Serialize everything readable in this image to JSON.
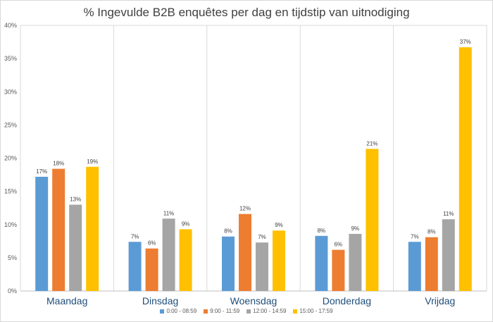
{
  "chart_data": {
    "type": "bar",
    "title": "% Ingevulde B2B enquêtes per dag en tijdstip van uitnodiging",
    "categories": [
      "Maandag",
      "Dinsdag",
      "Woensdag",
      "Donderdag",
      "Vrijdag"
    ],
    "ylim": [
      0,
      40
    ],
    "yticks": [
      "0%",
      "5%",
      "10%",
      "15%",
      "20%",
      "25%",
      "30%",
      "35%",
      "40%"
    ],
    "grid": "vertical lines between categories",
    "legend_position": "bottom",
    "series": [
      {
        "name": "0:00 - 08:59",
        "color": "#5b9bd5",
        "values": [
          17.2,
          7.4,
          8.2,
          8.3,
          7.4
        ],
        "labels": [
          "17%",
          "7%",
          "8%",
          "8%",
          "7%"
        ]
      },
      {
        "name": "9:00 - 11:59",
        "color": "#ed7d31",
        "values": [
          18.4,
          6.4,
          11.6,
          6.2,
          8.1
        ],
        "labels": [
          "18%",
          "6%",
          "12%",
          "6%",
          "8%"
        ]
      },
      {
        "name": "12:00 - 14:59",
        "color": "#a5a5a5",
        "values": [
          13.0,
          10.9,
          7.3,
          8.6,
          10.8
        ],
        "labels": [
          "13%",
          "11%",
          "7%",
          "9%",
          "11%"
        ]
      },
      {
        "name": "15:00 - 17:59",
        "color": "#ffc000",
        "values": [
          18.7,
          9.3,
          9.1,
          21.4,
          36.7
        ],
        "labels": [
          "19%",
          "9%",
          "9%",
          "21%",
          "37%"
        ]
      }
    ]
  }
}
